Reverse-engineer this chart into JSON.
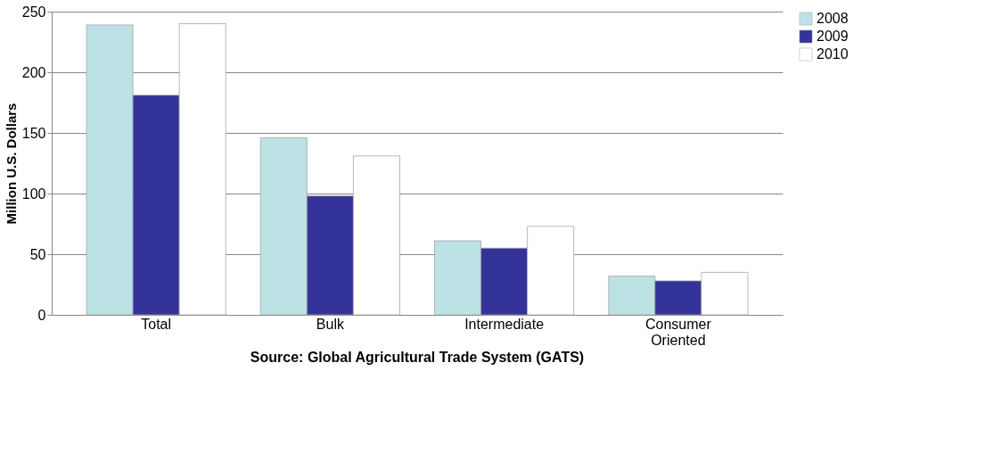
{
  "chart_data": {
    "type": "bar",
    "ylabel": "Million U.S. Dollars",
    "categories": [
      "Total",
      "Bulk",
      "Intermediate",
      "Consumer\nOriented"
    ],
    "series": [
      {
        "name": "2008",
        "color": "#bce2e5",
        "values": [
          239,
          146,
          61,
          32
        ]
      },
      {
        "name": "2009",
        "color": "#343399",
        "values": [
          181,
          98,
          55,
          28
        ]
      },
      {
        "name": "2010",
        "color": "#ffffff",
        "values": [
          240,
          131,
          73,
          35
        ]
      }
    ],
    "ylim": [
      0,
      250
    ],
    "yticks": [
      0,
      50,
      100,
      150,
      200,
      250
    ],
    "grid": "y",
    "legend": "right",
    "annotations": [
      "Source: Global Agricultural Trade System (GATS)"
    ]
  }
}
